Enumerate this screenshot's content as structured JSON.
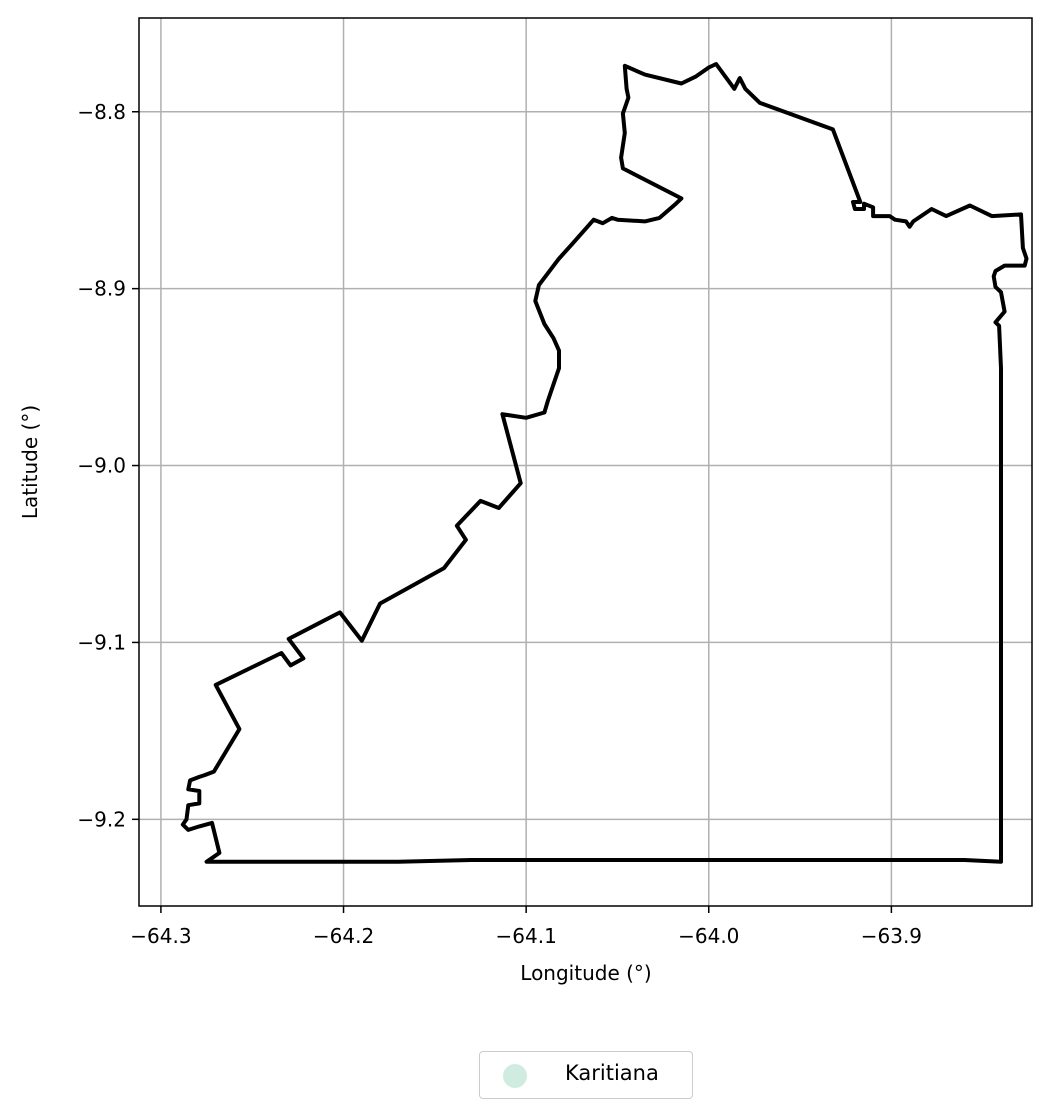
{
  "chart_data": {
    "type": "map",
    "xlabel": "Longitude (°)",
    "ylabel": "Latitude (°)",
    "xlim": [
      -64.312,
      -63.823
    ],
    "ylim": [
      -9.249,
      -8.747
    ],
    "xticks": [
      -64.3,
      -64.2,
      -64.1,
      -64.0,
      -63.9
    ],
    "xtick_labels": [
      "−64.3",
      "−64.2",
      "−64.1",
      "−64.0",
      "−63.9"
    ],
    "yticks": [
      -8.8,
      -8.9,
      -9.0,
      -9.1,
      -9.2
    ],
    "ytick_labels": [
      "−8.8",
      "−8.9",
      "−9.0",
      "−9.1",
      "−9.2"
    ],
    "grid": true,
    "legend": {
      "placement": "bottom-center",
      "entries": [
        {
          "label": "Karitiana",
          "color": "#d0ece0"
        }
      ]
    },
    "boundary_color": "#000000",
    "boundary": [
      [
        -64.275,
        -9.224
      ],
      [
        -64.17,
        -9.224
      ],
      [
        -64.13,
        -9.223
      ],
      [
        -64.09,
        -9.223
      ],
      [
        -64.05,
        -9.223
      ],
      [
        -64.0,
        -9.223
      ],
      [
        -63.95,
        -9.223
      ],
      [
        -63.89,
        -9.223
      ],
      [
        -63.86,
        -9.223
      ],
      [
        -63.84,
        -9.224
      ],
      [
        -63.84,
        -9.1
      ],
      [
        -63.84,
        -9.036
      ],
      [
        -63.84,
        -8.945
      ],
      [
        -63.841,
        -8.921
      ],
      [
        -63.843,
        -8.919
      ],
      [
        -63.838,
        -8.913
      ],
      [
        -63.84,
        -8.902
      ],
      [
        -63.843,
        -8.899
      ],
      [
        -63.844,
        -8.893
      ],
      [
        -63.843,
        -8.89
      ],
      [
        -63.838,
        -8.887
      ],
      [
        -63.827,
        -8.887
      ],
      [
        -63.826,
        -8.883
      ],
      [
        -63.828,
        -8.877
      ],
      [
        -63.829,
        -8.858
      ],
      [
        -63.845,
        -8.859
      ],
      [
        -63.857,
        -8.853
      ],
      [
        -63.87,
        -8.859
      ],
      [
        -63.878,
        -8.855
      ],
      [
        -63.888,
        -8.862
      ],
      [
        -63.89,
        -8.865
      ],
      [
        -63.892,
        -8.862
      ],
      [
        -63.898,
        -8.861
      ],
      [
        -63.901,
        -8.859
      ],
      [
        -63.91,
        -8.859
      ],
      [
        -63.91,
        -8.854
      ],
      [
        -63.915,
        -8.852
      ],
      [
        -63.915,
        -8.855
      ],
      [
        -63.92,
        -8.855
      ],
      [
        -63.921,
        -8.851
      ],
      [
        -63.917,
        -8.851
      ],
      [
        -63.932,
        -8.81
      ],
      [
        -63.972,
        -8.795
      ],
      [
        -63.98,
        -8.787
      ],
      [
        -63.983,
        -8.781
      ],
      [
        -63.986,
        -8.787
      ],
      [
        -63.996,
        -8.773
      ],
      [
        -64.0,
        -8.775
      ],
      [
        -64.007,
        -8.78
      ],
      [
        -64.015,
        -8.784
      ],
      [
        -64.035,
        -8.779
      ],
      [
        -64.046,
        -8.774
      ],
      [
        -64.045,
        -8.787
      ],
      [
        -64.044,
        -8.792
      ],
      [
        -64.047,
        -8.801
      ],
      [
        -64.046,
        -8.812
      ],
      [
        -64.048,
        -8.826
      ],
      [
        -64.047,
        -8.832
      ],
      [
        -64.015,
        -8.849
      ],
      [
        -64.018,
        -8.852
      ],
      [
        -64.027,
        -8.86
      ],
      [
        -64.035,
        -8.862
      ],
      [
        -64.05,
        -8.861
      ],
      [
        -64.053,
        -8.86
      ],
      [
        -64.058,
        -8.863
      ],
      [
        -64.063,
        -8.861
      ],
      [
        -64.075,
        -8.875
      ],
      [
        -64.082,
        -8.883
      ],
      [
        -64.093,
        -8.898
      ],
      [
        -64.095,
        -8.907
      ],
      [
        -64.09,
        -8.92
      ],
      [
        -64.085,
        -8.928
      ],
      [
        -64.082,
        -8.935
      ],
      [
        -64.082,
        -8.945
      ],
      [
        -64.088,
        -8.963
      ],
      [
        -64.09,
        -8.97
      ],
      [
        -64.1,
        -8.973
      ],
      [
        -64.113,
        -8.971
      ],
      [
        -64.103,
        -9.01
      ],
      [
        -64.115,
        -9.024
      ],
      [
        -64.125,
        -9.02
      ],
      [
        -64.138,
        -9.034
      ],
      [
        -64.133,
        -9.042
      ],
      [
        -64.145,
        -9.058
      ],
      [
        -64.18,
        -9.078
      ],
      [
        -64.19,
        -9.099
      ],
      [
        -64.202,
        -9.083
      ],
      [
        -64.215,
        -9.09
      ],
      [
        -64.23,
        -9.098
      ],
      [
        -64.222,
        -9.109
      ],
      [
        -64.229,
        -9.113
      ],
      [
        -64.234,
        -9.106
      ],
      [
        -64.27,
        -9.124
      ],
      [
        -64.257,
        -9.149
      ],
      [
        -64.271,
        -9.173
      ],
      [
        -64.276,
        -9.175
      ],
      [
        -64.279,
        -9.176
      ],
      [
        -64.284,
        -9.178
      ],
      [
        -64.285,
        -9.183
      ],
      [
        -64.279,
        -9.184
      ],
      [
        -64.279,
        -9.191
      ],
      [
        -64.285,
        -9.192
      ],
      [
        -64.286,
        -9.2
      ],
      [
        -64.288,
        -9.203
      ],
      [
        -64.285,
        -9.206
      ],
      [
        -64.279,
        -9.204
      ],
      [
        -64.272,
        -9.202
      ],
      [
        -64.268,
        -9.219
      ],
      [
        -64.275,
        -9.224
      ]
    ]
  }
}
